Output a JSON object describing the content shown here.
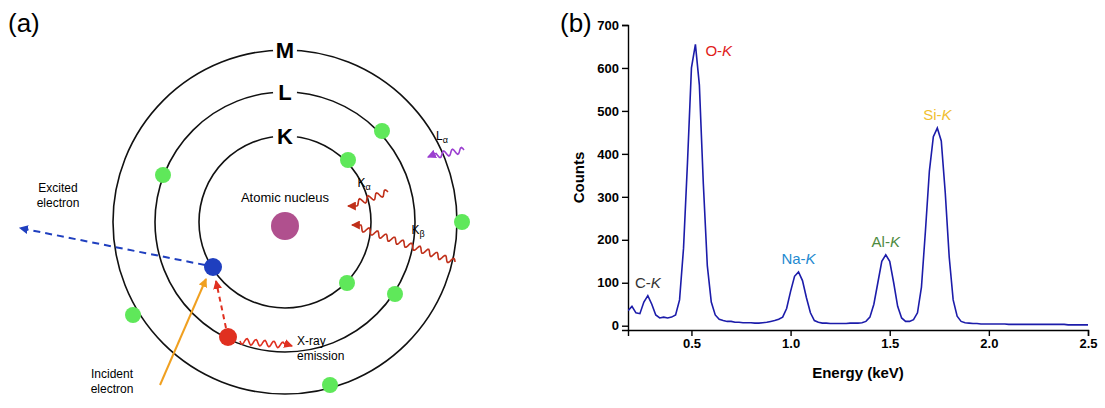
{
  "diagram": {
    "panel": "(a)",
    "shells": [
      "K",
      "L",
      "M"
    ],
    "nucleus": "Atomic nucleus",
    "excited": "Excited electron",
    "incident": "Incident electron",
    "emission": "X-ray emission",
    "transitions": [
      "Lα",
      "Kα",
      "Kβ"
    ]
  },
  "chart_data": {
    "panel": "(b)",
    "type": "line",
    "x_label": "Energy (keV)",
    "y_label": "Counts",
    "color": "#1c1caa",
    "x": [
      0.18,
      0.2,
      0.22,
      0.24,
      0.26,
      0.28,
      0.3,
      0.32,
      0.34,
      0.36,
      0.38,
      0.4,
      0.42,
      0.44,
      0.46,
      0.48,
      0.5,
      0.52,
      0.54,
      0.56,
      0.58,
      0.6,
      0.62,
      0.64,
      0.66,
      0.68,
      0.7,
      0.72,
      0.74,
      0.76,
      0.78,
      0.8,
      0.82,
      0.84,
      0.86,
      0.88,
      0.9,
      0.92,
      0.94,
      0.96,
      0.98,
      1,
      1.02,
      1.04,
      1.06,
      1.08,
      1.1,
      1.12,
      1.14,
      1.16,
      1.18,
      1.2,
      1.22,
      1.24,
      1.26,
      1.28,
      1.3,
      1.32,
      1.34,
      1.36,
      1.38,
      1.4,
      1.42,
      1.44,
      1.46,
      1.48,
      1.5,
      1.52,
      1.54,
      1.56,
      1.58,
      1.6,
      1.62,
      1.64,
      1.66,
      1.68,
      1.7,
      1.72,
      1.74,
      1.76,
      1.78,
      1.8,
      1.82,
      1.84,
      1.86,
      1.88,
      1.9,
      1.92,
      1.94,
      1.96,
      1.98,
      2,
      2.02,
      2.04,
      2.06,
      2.08,
      2.1,
      2.12,
      2.14,
      2.16,
      2.18,
      2.2,
      2.22,
      2.24,
      2.26,
      2.28,
      2.3,
      2.32,
      2.34,
      2.36,
      2.38,
      2.4,
      2.42,
      2.44,
      2.46,
      2.48,
      2.5
    ],
    "values": [
      35,
      45,
      30,
      28,
      55,
      70,
      50,
      25,
      18,
      20,
      18,
      20,
      25,
      60,
      180,
      380,
      600,
      655,
      560,
      330,
      140,
      55,
      25,
      15,
      12,
      10,
      10,
      8,
      8,
      7,
      7,
      7,
      6,
      6,
      7,
      8,
      10,
      12,
      15,
      20,
      40,
      80,
      115,
      125,
      105,
      65,
      30,
      12,
      8,
      6,
      6,
      5,
      5,
      5,
      5,
      5,
      6,
      6,
      6,
      7,
      10,
      20,
      50,
      100,
      150,
      165,
      150,
      100,
      45,
      18,
      10,
      10,
      14,
      30,
      90,
      220,
      360,
      440,
      460,
      430,
      310,
      160,
      60,
      22,
      10,
      7,
      6,
      5,
      5,
      4,
      4,
      4,
      4,
      4,
      4,
      4,
      3,
      3,
      3,
      3,
      3,
      3,
      3,
      3,
      3,
      3,
      3,
      3,
      3,
      3,
      3,
      2,
      2,
      2,
      2,
      2,
      2
    ],
    "xlim": [
      0.18,
      2.5
    ],
    "xticks": [
      0.5,
      {
        "value": 1,
        "label": "1.0"
      },
      1.5,
      {
        "value": 2,
        "label": "2.0"
      },
      2.5
    ],
    "ylim": [
      -10,
      700
    ],
    "yticks": [
      0,
      100,
      200,
      300,
      400,
      500,
      600,
      700
    ],
    "grid": false,
    "annotations": [
      {
        "text": "C-K",
        "x": 0.28,
        "color": "#333333"
      },
      {
        "text": "O-K",
        "x": 0.52,
        "color": "#e0201b"
      },
      {
        "text": "Na-K",
        "x": 1.04,
        "color": "#1f8ad0"
      },
      {
        "text": "Al-K",
        "x": 1.48,
        "color": "#4e8a3e"
      },
      {
        "text": "Si-K",
        "x": 1.74,
        "color": "#f0c030"
      }
    ]
  }
}
